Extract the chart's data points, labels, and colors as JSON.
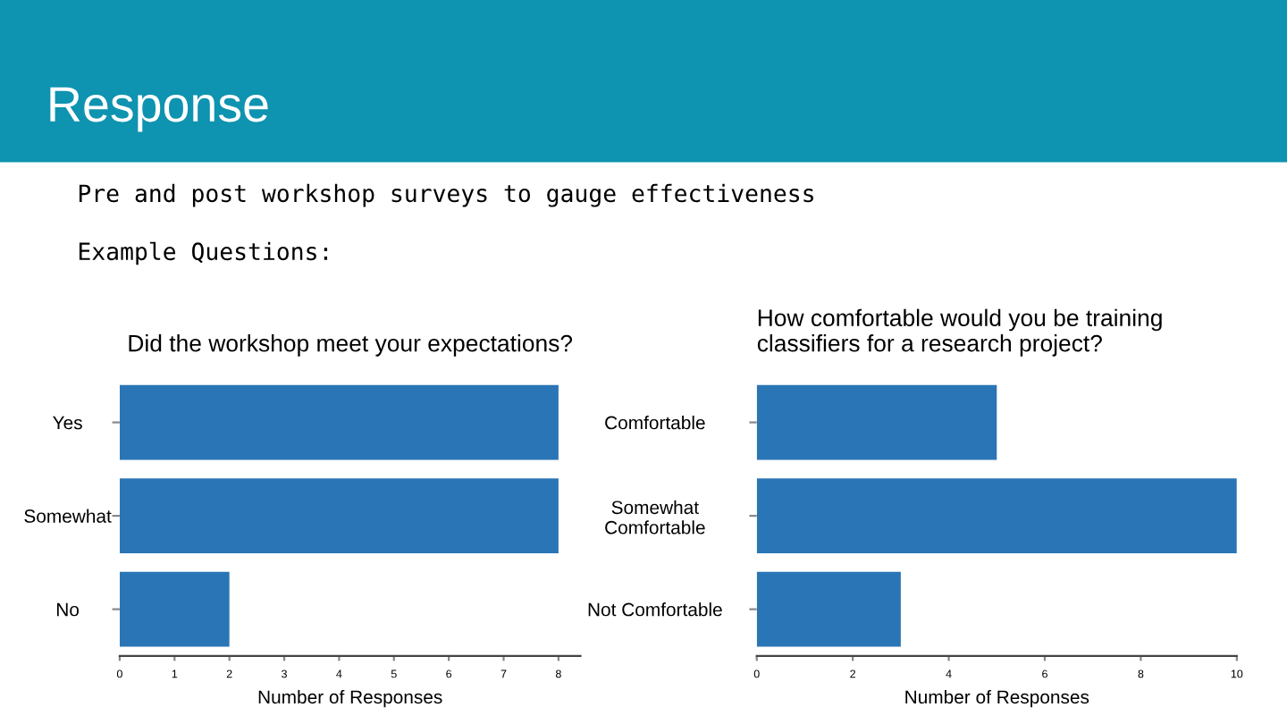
{
  "chart_data": [
    {
      "type": "bar",
      "orientation": "horizontal",
      "title": "Did the workshop meet your expectations?",
      "xlabel": "Number of Responses",
      "categories": [
        "Yes",
        "Somewhat",
        "No"
      ],
      "values": [
        8,
        8,
        2
      ],
      "color": "#2a75b5",
      "xlim": [
        0,
        8.4
      ],
      "xticks": [
        0,
        1,
        2,
        3,
        4,
        5,
        6,
        7,
        8
      ],
      "grid": false,
      "annotations": [
        "Response",
        "Pre and post workshop surveys to gauge effectiveness",
        "Example Questions:"
      ]
    },
    {
      "type": "bar",
      "orientation": "horizontal",
      "title": "How comfortable would you be training\nclassifiers for a research project?",
      "xlabel": "Number of Responses",
      "categories": [
        "Comfortable",
        "Somewhat\nComfortable",
        "Not Comfortable"
      ],
      "values": [
        5,
        10,
        3
      ],
      "color": "#2a75b5",
      "xlim": [
        0,
        10
      ],
      "xticks": [
        0,
        2,
        4,
        6,
        8,
        10
      ],
      "grid": false
    }
  ]
}
